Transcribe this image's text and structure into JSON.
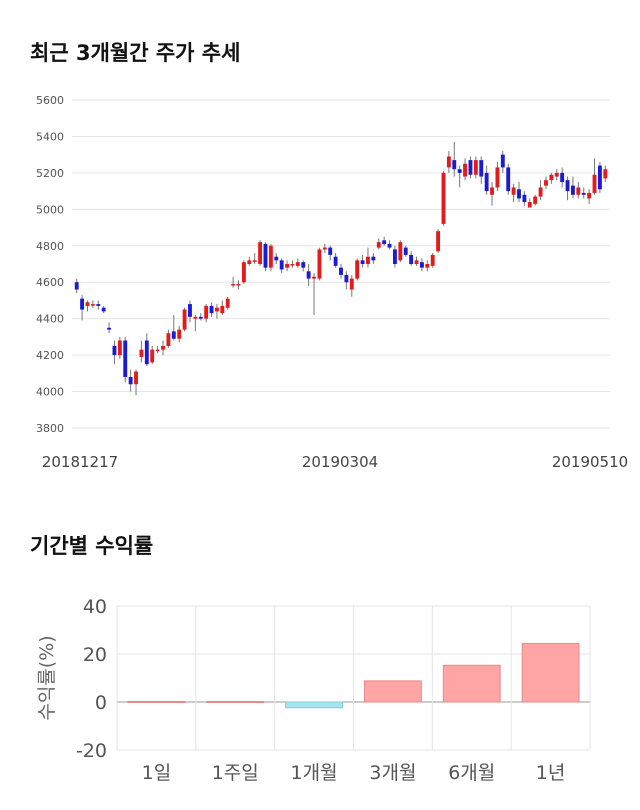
{
  "sections": {
    "price_title": "최근 3개월간 주가 추세",
    "returns_title": "기간별 수익률"
  },
  "colors": {
    "up": "#e31b1b",
    "down": "#1b1bd6",
    "wick": "#777777",
    "grid": "#e6e6e6",
    "bar_positive": "#ffa5a5",
    "bar_negative": "#a8e4ee",
    "bar_positive_stroke": "#e88a8a",
    "bar_negative_stroke": "#7ccfdd"
  },
  "chart_data": [
    {
      "type": "candlestick",
      "title": "최근 3개월간 주가 추세",
      "ylim": [
        3800,
        5600
      ],
      "yticks": [
        3800,
        4000,
        4200,
        4400,
        4600,
        4800,
        5000,
        5200,
        5400,
        5600
      ],
      "date_labels": [
        "20181217",
        "20190304",
        "20190510"
      ],
      "grid": true,
      "candles": [
        [
          4600,
          4560,
          4620,
          4540
        ],
        [
          4510,
          4450,
          4530,
          4390
        ],
        [
          4470,
          4490,
          4500,
          4440
        ],
        [
          4480,
          4480,
          4500,
          4460
        ],
        [
          4480,
          4470,
          4500,
          4450
        ],
        [
          4460,
          4440,
          4470,
          4430
        ],
        [
          4350,
          4340,
          4380,
          4320
        ],
        [
          4250,
          4200,
          4280,
          4150
        ],
        [
          4200,
          4280,
          4300,
          4180
        ],
        [
          4280,
          4080,
          4300,
          4050
        ],
        [
          4080,
          4040,
          4120,
          4000
        ],
        [
          4040,
          4110,
          4120,
          3980
        ],
        [
          4190,
          4230,
          4280,
          4160
        ],
        [
          4280,
          4150,
          4320,
          4140
        ],
        [
          4160,
          4230,
          4250,
          4150
        ],
        [
          4230,
          4230,
          4250,
          4210
        ],
        [
          4230,
          4250,
          4280,
          4200
        ],
        [
          4250,
          4320,
          4340,
          4240
        ],
        [
          4330,
          4290,
          4420,
          4280
        ],
        [
          4290,
          4340,
          4360,
          4270
        ],
        [
          4340,
          4450,
          4460,
          4330
        ],
        [
          4480,
          4410,
          4500,
          4380
        ],
        [
          4400,
          4410,
          4420,
          4330
        ],
        [
          4410,
          4400,
          4430,
          4390
        ],
        [
          4400,
          4470,
          4480,
          4380
        ],
        [
          4470,
          4430,
          4490,
          4410
        ],
        [
          4440,
          4460,
          4480,
          4400
        ],
        [
          4430,
          4470,
          4500,
          4420
        ],
        [
          4460,
          4510,
          4520,
          4450
        ],
        [
          4590,
          4590,
          4630,
          4570
        ],
        [
          4590,
          4590,
          4610,
          4560
        ],
        [
          4600,
          4710,
          4720,
          4590
        ],
        [
          4700,
          4720,
          4740,
          4690
        ],
        [
          4720,
          4720,
          4760,
          4700
        ],
        [
          4700,
          4820,
          4830,
          4690
        ],
        [
          4810,
          4680,
          4820,
          4660
        ],
        [
          4680,
          4800,
          4810,
          4660
        ],
        [
          4740,
          4720,
          4760,
          4700
        ],
        [
          4720,
          4670,
          4730,
          4650
        ],
        [
          4680,
          4700,
          4720,
          4660
        ],
        [
          4700,
          4700,
          4720,
          4680
        ],
        [
          4690,
          4710,
          4730,
          4680
        ],
        [
          4710,
          4680,
          4720,
          4660
        ],
        [
          4660,
          4620,
          4700,
          4580
        ],
        [
          4620,
          4630,
          4650,
          4420
        ],
        [
          4620,
          4780,
          4790,
          4610
        ],
        [
          4780,
          4790,
          4810,
          4760
        ],
        [
          4790,
          4750,
          4800,
          4720
        ],
        [
          4740,
          4690,
          4760,
          4680
        ],
        [
          4680,
          4640,
          4700,
          4620
        ],
        [
          4640,
          4600,
          4660,
          4560
        ],
        [
          4560,
          4620,
          4640,
          4520
        ],
        [
          4620,
          4720,
          4730,
          4610
        ],
        [
          4720,
          4700,
          4750,
          4680
        ],
        [
          4700,
          4740,
          4790,
          4680
        ],
        [
          4740,
          4720,
          4760,
          4700
        ],
        [
          4790,
          4820,
          4840,
          4780
        ],
        [
          4830,
          4810,
          4850,
          4800
        ],
        [
          4810,
          4790,
          4830,
          4780
        ],
        [
          4780,
          4700,
          4800,
          4680
        ],
        [
          4720,
          4820,
          4830,
          4710
        ],
        [
          4790,
          4750,
          4800,
          4740
        ],
        [
          4750,
          4700,
          4770,
          4690
        ],
        [
          4700,
          4720,
          4740,
          4690
        ],
        [
          4710,
          4680,
          4730,
          4660
        ],
        [
          4680,
          4700,
          4720,
          4660
        ],
        [
          4690,
          4750,
          4760,
          4680
        ],
        [
          4770,
          4880,
          4890,
          4760
        ],
        [
          4920,
          5200,
          5210,
          4910
        ],
        [
          5230,
          5290,
          5320,
          5200
        ],
        [
          5270,
          5220,
          5370,
          5180
        ],
        [
          5220,
          5200,
          5240,
          5120
        ],
        [
          5180,
          5250,
          5280,
          5160
        ],
        [
          5270,
          5190,
          5290,
          5170
        ],
        [
          5190,
          5270,
          5290,
          5170
        ],
        [
          5270,
          5180,
          5290,
          5140
        ],
        [
          5200,
          5100,
          5240,
          5080
        ],
        [
          5080,
          5120,
          5150,
          5020
        ],
        [
          5120,
          5230,
          5260,
          5100
        ],
        [
          5300,
          5230,
          5320,
          5200
        ],
        [
          5230,
          5100,
          5250,
          5080
        ],
        [
          5080,
          5120,
          5140,
          5040
        ],
        [
          5110,
          5060,
          5150,
          5040
        ],
        [
          5080,
          5040,
          5100,
          5020
        ],
        [
          5010,
          5040,
          5060,
          5010
        ],
        [
          5030,
          5070,
          5080,
          5020
        ],
        [
          5070,
          5120,
          5160,
          5050
        ],
        [
          5130,
          5160,
          5180,
          5110
        ],
        [
          5160,
          5190,
          5200,
          5140
        ],
        [
          5180,
          5200,
          5220,
          5160
        ],
        [
          5200,
          5150,
          5230,
          5120
        ],
        [
          5160,
          5100,
          5180,
          5050
        ],
        [
          5130,
          5080,
          5180,
          5060
        ],
        [
          5080,
          5120,
          5150,
          5060
        ],
        [
          5090,
          5080,
          5120,
          5060
        ],
        [
          5060,
          5090,
          5110,
          5030
        ],
        [
          5090,
          5190,
          5280,
          5080
        ],
        [
          5240,
          5110,
          5260,
          5090
        ],
        [
          5170,
          5220,
          5240,
          5150
        ]
      ]
    },
    {
      "type": "bar",
      "title": "기간별 수익률",
      "ylabel": "수익률(%)",
      "categories": [
        "1일",
        "1주일",
        "1개월",
        "3개월",
        "6개월",
        "1년"
      ],
      "values": [
        0,
        0,
        -2.4,
        8.8,
        15.3,
        24.4
      ],
      "ylim": [
        -20,
        40
      ],
      "yticks": [
        -20,
        0,
        20,
        40
      ],
      "grid": true
    }
  ]
}
